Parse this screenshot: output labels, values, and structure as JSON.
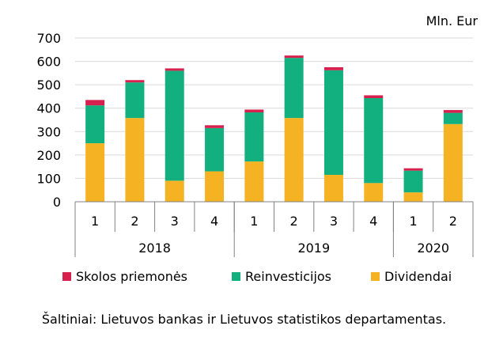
{
  "chart_data": {
    "type": "bar",
    "stacked": true,
    "unit_label": "Mln. Eur",
    "ylim": [
      0,
      700
    ],
    "yticks": [
      0,
      100,
      200,
      300,
      400,
      500,
      600,
      700
    ],
    "grid": true,
    "categories": [
      "1",
      "2",
      "3",
      "4",
      "1",
      "2",
      "3",
      "4",
      "1",
      "2"
    ],
    "year_groups": [
      {
        "label": "2018",
        "count": 4
      },
      {
        "label": "2019",
        "count": 4
      },
      {
        "label": "2020",
        "count": 2
      }
    ],
    "series": [
      {
        "name": "Dividendai",
        "color": "#F5B323",
        "values": [
          250,
          358,
          90,
          130,
          172,
          358,
          115,
          80,
          40,
          332
        ]
      },
      {
        "name": "Reinvesticijos",
        "color": "#13B07F",
        "values": [
          162,
          152,
          470,
          185,
          210,
          257,
          447,
          363,
          93,
          48
        ]
      },
      {
        "name": "Skolos priemonės",
        "color": "#D6204E",
        "values": [
          23,
          10,
          10,
          12,
          12,
          10,
          13,
          12,
          10,
          12
        ]
      }
    ],
    "legend_position": "bottom"
  },
  "legend": [
    {
      "label": "Skolos priemonės",
      "color": "#D6204E"
    },
    {
      "label": "Reinvesticijos",
      "color": "#13B07F"
    },
    {
      "label": "Dividendai",
      "color": "#F5B323"
    }
  ],
  "source_text": "Šaltiniai: Lietuvos bankas ir Lietuvos statistikos departamentas."
}
